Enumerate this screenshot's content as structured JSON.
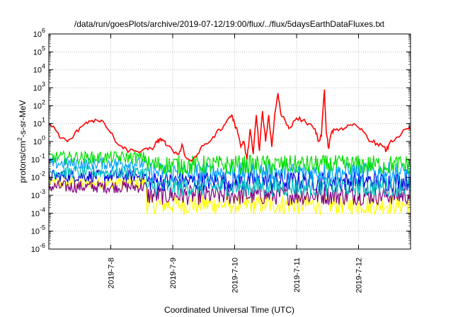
{
  "chart_data": {
    "type": "line",
    "title": "/data/run/goesPlots/archive/2019-07-12/19:00/flux/../flux/5daysEarthDataFluxes.txt",
    "xlabel": "Coordinated Universal Time (UTC)",
    "ylabel_parts": [
      "protons/cm",
      "2",
      "-s-sr-MeV"
    ],
    "y_scale": "log",
    "ylim": [
      1e-06,
      1000000.0
    ],
    "xlim": [
      0,
      5.84
    ],
    "grid": true,
    "legend": "none",
    "y_ticks": [
      {
        "exp": "-6",
        "base": "10"
      },
      {
        "exp": "-5",
        "base": "10"
      },
      {
        "exp": "-4",
        "base": "10"
      },
      {
        "exp": "-3",
        "base": "10"
      },
      {
        "exp": "-2",
        "base": "10"
      },
      {
        "exp": "-1",
        "base": "10"
      },
      {
        "exp": "0",
        "base": "10"
      },
      {
        "exp": "1",
        "base": "10"
      },
      {
        "exp": "2",
        "base": "10"
      },
      {
        "exp": "3",
        "base": "10"
      },
      {
        "exp": "4",
        "base": "10"
      },
      {
        "exp": "5",
        "base": "10"
      },
      {
        "exp": "6",
        "base": "10"
      }
    ],
    "x_ticks": [
      {
        "label": "2019-7-8",
        "x": 1
      },
      {
        "label": "2019-7-9",
        "x": 2
      },
      {
        "label": "2019-7-10",
        "x": 3
      },
      {
        "label": "2019-7-11",
        "x": 4
      },
      {
        "label": "2019-7-12",
        "x": 5
      }
    ],
    "series": [
      {
        "color": "#ff0000",
        "points": [
          [
            0,
            10
          ],
          [
            0.1,
            5
          ],
          [
            0.2,
            1.5
          ],
          [
            0.3,
            1
          ],
          [
            0.4,
            2
          ],
          [
            0.5,
            6
          ],
          [
            0.6,
            12
          ],
          [
            0.7,
            15
          ],
          [
            0.8,
            14
          ],
          [
            0.9,
            10
          ],
          [
            1.0,
            3
          ],
          [
            1.1,
            0.8
          ],
          [
            1.2,
            0.4
          ],
          [
            1.3,
            0.3
          ],
          [
            1.4,
            0.3
          ],
          [
            1.5,
            0.3
          ],
          [
            1.6,
            0.35
          ],
          [
            1.7,
            0.5
          ],
          [
            1.75,
            0.9
          ],
          [
            1.8,
            1.5
          ],
          [
            1.85,
            1.2
          ],
          [
            1.9,
            0.6
          ],
          [
            2.0,
            0.3
          ],
          [
            2.1,
            0.2
          ],
          [
            2.15,
            0.7
          ],
          [
            2.2,
            0.15
          ],
          [
            2.3,
            0.08
          ],
          [
            2.4,
            0.2
          ],
          [
            2.5,
            0.6
          ],
          [
            2.6,
            1
          ],
          [
            2.7,
            3
          ],
          [
            2.8,
            5
          ],
          [
            2.9,
            20
          ],
          [
            2.95,
            30
          ],
          [
            3.0,
            10
          ],
          [
            3.05,
            3
          ],
          [
            3.1,
            0.5
          ],
          [
            3.15,
            1
          ],
          [
            3.2,
            0.1
          ],
          [
            3.25,
            5
          ],
          [
            3.3,
            0.2
          ],
          [
            3.35,
            30
          ],
          [
            3.4,
            0.3
          ],
          [
            3.45,
            50
          ],
          [
            3.5,
            1
          ],
          [
            3.55,
            30
          ],
          [
            3.6,
            0.5
          ],
          [
            3.65,
            40
          ],
          [
            3.7,
            500
          ],
          [
            3.75,
            30
          ],
          [
            3.8,
            20
          ],
          [
            3.85,
            8
          ],
          [
            3.9,
            6
          ],
          [
            4.0,
            20
          ],
          [
            4.1,
            15
          ],
          [
            4.2,
            10
          ],
          [
            4.3,
            5
          ],
          [
            4.35,
            1
          ],
          [
            4.4,
            2
          ],
          [
            4.45,
            800
          ],
          [
            4.48,
            3
          ],
          [
            4.52,
            0.4
          ],
          [
            4.55,
            2
          ],
          [
            4.6,
            5
          ],
          [
            4.7,
            5
          ],
          [
            4.8,
            6
          ],
          [
            4.9,
            8
          ],
          [
            5.0,
            6
          ],
          [
            5.1,
            3
          ],
          [
            5.2,
            1
          ],
          [
            5.3,
            0.8
          ],
          [
            5.4,
            0.5
          ],
          [
            5.45,
            0.3
          ],
          [
            5.5,
            0.8
          ],
          [
            5.6,
            1.5
          ],
          [
            5.7,
            3
          ],
          [
            5.8,
            5
          ],
          [
            5.84,
            6
          ]
        ]
      },
      {
        "color": "#00e000",
        "before": 0.13,
        "after": 0.05
      },
      {
        "color": "#00a0ff",
        "before": 0.06,
        "after": 0.02
      },
      {
        "color": "#00c0c0",
        "before": 0.02,
        "after": 0.003
      },
      {
        "color": "#0000e0",
        "before": 0.012,
        "after": 0.006
      },
      {
        "color": "#800080",
        "before": 0.003,
        "after": 0.001
      },
      {
        "color": "#ffff00",
        "before": 0.005,
        "after": 0.0003
      }
    ],
    "step_x": 1.58
  }
}
